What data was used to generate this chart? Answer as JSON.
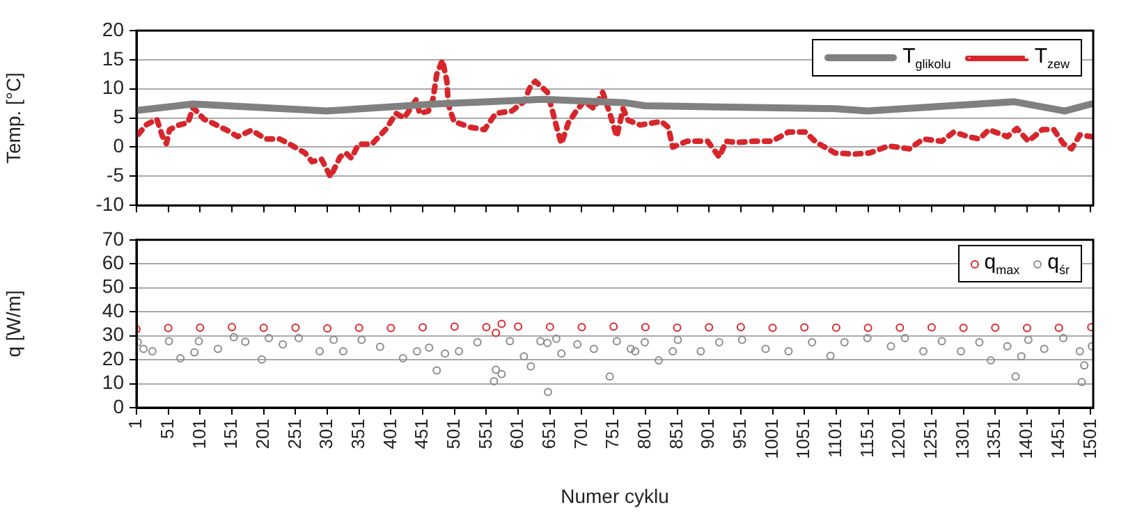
{
  "chart_data": [
    {
      "type": "line",
      "ylabel": "Temp. [°C]",
      "xlim": [
        1,
        1505
      ],
      "xticks": [
        1,
        51,
        101,
        151,
        201,
        251,
        301,
        351,
        401,
        451,
        501,
        551,
        601,
        651,
        701,
        751,
        801,
        851,
        901,
        951,
        1001,
        1051,
        1101,
        1151,
        1201,
        1251,
        1301,
        1351,
        1401,
        1451,
        1501
      ],
      "ylim": [
        -10,
        20
      ],
      "yticks": [
        -10,
        -5,
        0,
        5,
        10,
        15,
        20
      ],
      "tick_labels": "y",
      "grid": "y",
      "legend": "top right",
      "marker": "none",
      "series": [
        {
          "name": "T$_{glikolu}$",
          "color": "#808080",
          "line_style": "solid",
          "x": [
            1,
            90,
            300,
            470,
            640,
            771,
            800,
            1100,
            1150,
            1380,
            1460,
            1502
          ],
          "values": [
            6.3,
            7.4,
            6.2,
            7.4,
            8.2,
            7.6,
            7.1,
            6.6,
            6.2,
            7.8,
            6.2,
            7.4
          ]
        },
        {
          "name": "T$_{zew}$",
          "color": "#d7262b",
          "line_style": "dashed",
          "x": [
            4,
            16,
            33,
            42,
            48,
            53,
            68,
            82,
            90,
            107,
            123,
            145,
            160,
            182,
            204,
            226,
            242,
            266,
            277,
            292,
            306,
            321,
            330,
            339,
            350,
            371,
            394,
            409,
            422,
            441,
            446,
            460,
            467,
            473,
            482,
            489,
            491,
            500,
            526,
            548,
            566,
            591,
            610,
            621,
            628,
            647,
            654,
            662,
            669,
            680,
            693,
            705,
            720,
            734,
            745,
            756,
            766,
            774,
            793,
            826,
            837,
            844,
            866,
            899,
            917,
            928,
            946,
            971,
            1000,
            1026,
            1052,
            1070,
            1099,
            1129,
            1154,
            1183,
            1216,
            1238,
            1267,
            1286,
            1308,
            1326,
            1341,
            1370,
            1385,
            1403,
            1425,
            1443,
            1458,
            1471,
            1484,
            1502
          ],
          "values": [
            2.2,
            3.8,
            4.8,
            1.8,
            0.6,
            3.0,
            3.8,
            4.2,
            6.8,
            4.8,
            4.0,
            2.8,
            1.8,
            2.9,
            1.4,
            1.4,
            0.5,
            -1.0,
            -2.5,
            -2.1,
            -5.1,
            -1.7,
            -1.0,
            -1.9,
            0.5,
            0.5,
            3.2,
            5.8,
            5.0,
            8.2,
            5.8,
            6.2,
            8.2,
            12.5,
            14.9,
            11.3,
            7.4,
            4.4,
            3.4,
            3.0,
            5.8,
            6.2,
            7.8,
            10.6,
            11.3,
            9.4,
            6.6,
            3.2,
            0.6,
            4.2,
            6.3,
            7.9,
            6.6,
            9.4,
            5.8,
            1.8,
            6.6,
            4.6,
            3.8,
            4.4,
            3.4,
            0.0,
            1.0,
            1.0,
            -1.7,
            1.0,
            0.8,
            1.0,
            1.0,
            2.6,
            2.6,
            0.8,
            -1.0,
            -1.2,
            -1.0,
            0.2,
            -0.3,
            1.4,
            1.0,
            2.6,
            1.8,
            1.4,
            3.0,
            1.8,
            3.2,
            1.0,
            3.0,
            3.0,
            0.6,
            -0.3,
            2.1,
            1.8
          ]
        }
      ]
    },
    {
      "type": "scatter",
      "xlabel": "Numer cyklu",
      "ylabel": "q [W/m]",
      "xlim": [
        1,
        1505
      ],
      "xticks": [
        1,
        51,
        101,
        151,
        201,
        251,
        301,
        351,
        401,
        451,
        501,
        551,
        601,
        651,
        701,
        751,
        801,
        851,
        901,
        951,
        1001,
        1051,
        1101,
        1151,
        1201,
        1251,
        1301,
        1351,
        1401,
        1451,
        1501
      ],
      "ylim": [
        0,
        70
      ],
      "yticks": [
        0,
        10,
        20,
        30,
        40,
        50,
        60,
        70
      ],
      "grid": "y",
      "legend": "top right",
      "marker": "circle",
      "series": [
        {
          "name": "q$_{max}$",
          "color": "#e0262b",
          "x": [
            1,
            51,
            101,
            151,
            201,
            251,
            301,
            351,
            401,
            451,
            501,
            551,
            566,
            575,
            601,
            651,
            701,
            751,
            801,
            851,
            901,
            951,
            1001,
            1051,
            1101,
            1151,
            1201,
            1251,
            1301,
            1351,
            1401,
            1451,
            1502
          ],
          "values": [
            32.7,
            33.2,
            33.4,
            33.6,
            33.3,
            33.4,
            33.1,
            33.3,
            33.2,
            33.5,
            33.8,
            33.6,
            31.2,
            35.0,
            33.8,
            33.7,
            33.6,
            33.8,
            33.6,
            33.4,
            33.5,
            33.6,
            33.3,
            33.5,
            33.4,
            33.3,
            33.4,
            33.5,
            33.3,
            33.4,
            33.2,
            33.3,
            33.6
          ]
        },
        {
          "name": "q$_{śr}$",
          "color": "#8c8c8c",
          "x": [
            3,
            12,
            26,
            52,
            70,
            92,
            99,
            129,
            154,
            172,
            198,
            209,
            231,
            256,
            289,
            311,
            326,
            355,
            384,
            420,
            442,
            461,
            473,
            486,
            508,
            537,
            563,
            566,
            575,
            588,
            610,
            621,
            636,
            647,
            648,
            661,
            669,
            694,
            720,
            745,
            756,
            778,
            785,
            800,
            822,
            844,
            852,
            888,
            917,
            953,
            990,
            1026,
            1063,
            1092,
            1114,
            1150,
            1187,
            1209,
            1238,
            1267,
            1297,
            1326,
            1344,
            1370,
            1383,
            1392,
            1403,
            1428,
            1458,
            1484,
            1487,
            1491,
            1503
          ],
          "values": [
            27.3,
            24.5,
            23.5,
            27.7,
            20.6,
            23.1,
            27.7,
            24.5,
            29.4,
            27.5,
            20.1,
            29.0,
            26.4,
            29.0,
            23.5,
            28.3,
            23.5,
            28.3,
            25.4,
            20.6,
            23.5,
            25.0,
            15.5,
            22.6,
            23.5,
            27.3,
            11.0,
            15.8,
            14.0,
            27.7,
            21.4,
            17.2,
            27.7,
            27.0,
            6.5,
            28.7,
            22.6,
            26.4,
            24.5,
            13.0,
            27.7,
            24.5,
            23.5,
            27.3,
            19.7,
            23.5,
            28.3,
            23.5,
            27.3,
            28.3,
            24.5,
            23.5,
            27.3,
            21.6,
            27.3,
            29.0,
            25.6,
            29.0,
            23.5,
            27.7,
            23.5,
            27.3,
            19.7,
            25.6,
            13.0,
            21.4,
            28.3,
            24.5,
            29.0,
            23.5,
            10.7,
            17.6,
            25.6
          ]
        }
      ]
    }
  ]
}
